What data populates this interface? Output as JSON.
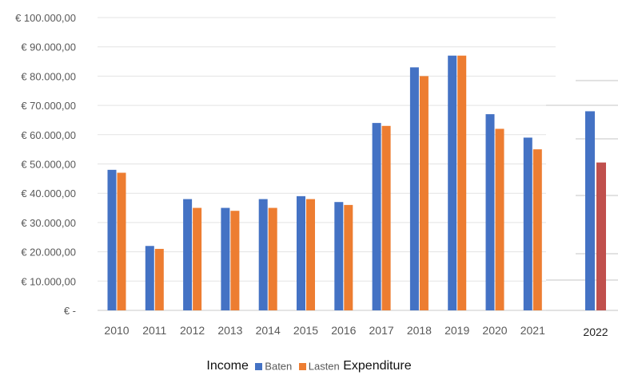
{
  "chart_data": {
    "type": "bar",
    "categories": [
      "2010",
      "2011",
      "2012",
      "2013",
      "2014",
      "2015",
      "2016",
      "2017",
      "2018",
      "2019",
      "2020",
      "2021"
    ],
    "series": [
      {
        "name": "Baten",
        "color": "#4472c4",
        "values": [
          48000,
          22000,
          38000,
          35000,
          38000,
          39000,
          37000,
          64000,
          83000,
          87000,
          67000,
          59000
        ]
      },
      {
        "name": "Lasten",
        "color": "#ed7d31",
        "values": [
          47000,
          21000,
          35000,
          34000,
          35000,
          38000,
          36000,
          63000,
          80000,
          87000,
          62000,
          55000
        ]
      }
    ],
    "ylim": [
      0,
      100000
    ],
    "yticks": [
      {
        "value": 0,
        "label": "€ -"
      },
      {
        "value": 10000,
        "label": "€ 10.000,00"
      },
      {
        "value": 20000,
        "label": "€ 20.000,00"
      },
      {
        "value": 30000,
        "label": "€ 30.000,00"
      },
      {
        "value": 40000,
        "label": "€ 40.000,00"
      },
      {
        "value": 50000,
        "label": "€ 50.000,00"
      },
      {
        "value": 60000,
        "label": "€ 60.000,00"
      },
      {
        "value": 70000,
        "label": "€ 70.000,00"
      },
      {
        "value": 80000,
        "label": "€ 80.000,00"
      },
      {
        "value": 90000,
        "label": "€ 90.000,00"
      },
      {
        "value": 100000,
        "label": "€ 100.000,00"
      }
    ],
    "grid": true,
    "legend": "bottom",
    "inset": {
      "category": "2022",
      "values": [
        68000,
        50500
      ],
      "colors": [
        "#4472c4",
        "#c0504d"
      ]
    }
  },
  "legend": {
    "left_label": "Income",
    "right_label": "Expenditure"
  }
}
